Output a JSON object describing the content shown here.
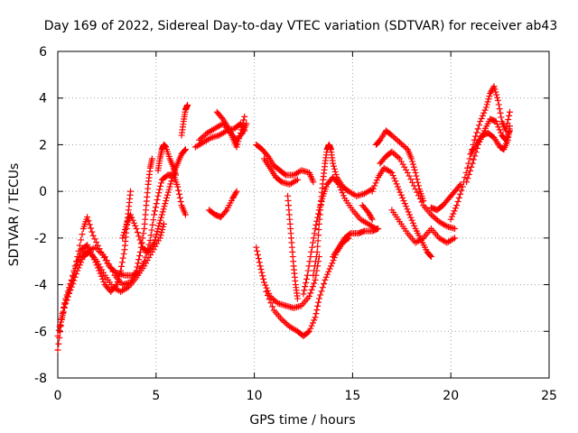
{
  "chart_data": {
    "type": "scatter",
    "title": "Day 169 of 2022, Sidereal Day-to-day VTEC variation (SDTVAR) for receiver ab43",
    "xlabel": "GPS time / hours",
    "ylabel": "SDTVAR / TECUs",
    "xlim": [
      0,
      25
    ],
    "ylim": [
      -8,
      6
    ],
    "xticks": [
      0,
      5,
      10,
      15,
      20,
      25
    ],
    "yticks": [
      -8,
      -6,
      -4,
      -2,
      0,
      2,
      4,
      6
    ],
    "grid": true,
    "marker": "plus",
    "color": "#ff0000",
    "traces": [
      {
        "name": "t1",
        "points": [
          [
            0.0,
            -6.8
          ],
          [
            0.2,
            -5.5
          ],
          [
            0.4,
            -4.6
          ],
          [
            0.7,
            -3.8
          ],
          [
            1.0,
            -2.8
          ],
          [
            1.3,
            -1.6
          ],
          [
            1.5,
            -1.1
          ],
          [
            1.8,
            -1.9
          ],
          [
            2.2,
            -2.6
          ],
          [
            2.6,
            -3.2
          ],
          [
            3.0,
            -3.5
          ],
          [
            3.4,
            -3.6
          ],
          [
            3.8,
            -3.6
          ],
          [
            4.1,
            -3.5
          ],
          [
            4.4,
            -3.0
          ],
          [
            4.7,
            -2.1
          ],
          [
            4.9,
            -1.0
          ],
          [
            5.1,
            -0.2
          ],
          [
            5.3,
            0.5
          ],
          [
            5.6,
            0.7
          ],
          [
            5.9,
            0.7
          ],
          [
            6.1,
            0.2
          ],
          [
            6.3,
            -0.6
          ],
          [
            6.5,
            -1.0
          ]
        ]
      },
      {
        "name": "t2",
        "points": [
          [
            0.0,
            -6.2
          ],
          [
            0.3,
            -5.0
          ],
          [
            0.6,
            -4.2
          ],
          [
            0.9,
            -3.3
          ],
          [
            1.2,
            -2.5
          ],
          [
            1.5,
            -2.3
          ],
          [
            1.8,
            -2.8
          ],
          [
            2.1,
            -3.4
          ],
          [
            2.4,
            -4.0
          ],
          [
            2.7,
            -4.3
          ],
          [
            3.0,
            -4.0
          ],
          [
            3.2,
            -3.4
          ],
          [
            3.4,
            -2.5
          ],
          [
            3.5,
            -1.6
          ],
          [
            3.6,
            -0.8
          ],
          [
            3.7,
            0.0
          ]
        ]
      },
      {
        "name": "t3",
        "points": [
          [
            0.1,
            -5.8
          ],
          [
            0.4,
            -4.8
          ],
          [
            0.7,
            -4.1
          ],
          [
            1.0,
            -3.4
          ],
          [
            1.3,
            -2.8
          ],
          [
            1.6,
            -2.6
          ],
          [
            2.0,
            -3.0
          ],
          [
            2.4,
            -3.6
          ],
          [
            2.8,
            -4.1
          ],
          [
            3.2,
            -4.3
          ],
          [
            3.6,
            -4.1
          ],
          [
            4.0,
            -3.7
          ],
          [
            4.4,
            -3.2
          ],
          [
            4.8,
            -2.6
          ],
          [
            5.2,
            -2.0
          ],
          [
            5.4,
            -1.4
          ]
        ]
      },
      {
        "name": "t4",
        "points": [
          [
            1.0,
            -3.0
          ],
          [
            1.4,
            -2.6
          ],
          [
            1.9,
            -2.4
          ],
          [
            2.4,
            -2.8
          ],
          [
            2.9,
            -3.6
          ],
          [
            3.3,
            -4.0
          ],
          [
            3.7,
            -3.9
          ],
          [
            4.0,
            -3.4
          ],
          [
            4.2,
            -2.6
          ],
          [
            4.4,
            -1.6
          ],
          [
            4.5,
            -0.6
          ],
          [
            4.6,
            0.3
          ],
          [
            4.7,
            1.0
          ],
          [
            4.8,
            1.4
          ]
        ]
      },
      {
        "name": "t5",
        "points": [
          [
            3.3,
            -2.0
          ],
          [
            3.5,
            -1.4
          ],
          [
            3.7,
            -1.0
          ],
          [
            4.0,
            -1.6
          ],
          [
            4.3,
            -2.4
          ],
          [
            4.6,
            -2.6
          ],
          [
            4.9,
            -2.2
          ],
          [
            5.1,
            -1.6
          ],
          [
            5.3,
            -1.0
          ],
          [
            5.5,
            -0.4
          ],
          [
            5.7,
            0.2
          ],
          [
            5.9,
            0.8
          ],
          [
            6.1,
            1.2
          ],
          [
            6.3,
            1.6
          ],
          [
            6.5,
            1.8
          ]
        ]
      },
      {
        "name": "t6",
        "points": [
          [
            5.1,
            0.9
          ],
          [
            5.2,
            1.4
          ],
          [
            5.3,
            1.8
          ],
          [
            5.4,
            2.0
          ],
          [
            5.5,
            1.9
          ],
          [
            5.7,
            1.4
          ],
          [
            5.9,
            1.0
          ],
          [
            6.0,
            0.7
          ]
        ]
      },
      {
        "name": "t7",
        "points": [
          [
            6.3,
            2.4
          ],
          [
            6.4,
            3.0
          ],
          [
            6.5,
            3.5
          ],
          [
            6.6,
            3.7
          ]
        ]
      },
      {
        "name": "t8",
        "points": [
          [
            7.0,
            1.9
          ],
          [
            7.4,
            2.1
          ],
          [
            7.8,
            2.3
          ],
          [
            8.2,
            2.4
          ],
          [
            8.6,
            2.6
          ],
          [
            9.0,
            2.7
          ],
          [
            9.3,
            2.9
          ],
          [
            9.5,
            2.6
          ]
        ]
      },
      {
        "name": "t9",
        "points": [
          [
            7.2,
            2.2
          ],
          [
            7.6,
            2.5
          ],
          [
            8.0,
            2.7
          ],
          [
            8.4,
            2.9
          ],
          [
            8.8,
            2.5
          ],
          [
            9.1,
            2.2
          ],
          [
            9.4,
            2.5
          ],
          [
            9.6,
            2.9
          ]
        ]
      },
      {
        "name": "t10",
        "points": [
          [
            8.1,
            3.4
          ],
          [
            8.4,
            3.1
          ],
          [
            8.7,
            2.7
          ],
          [
            8.9,
            2.3
          ],
          [
            9.1,
            1.9
          ],
          [
            9.3,
            2.5
          ],
          [
            9.5,
            3.2
          ]
        ]
      },
      {
        "name": "t11",
        "points": [
          [
            7.7,
            -0.8
          ],
          [
            8.0,
            -1.0
          ],
          [
            8.3,
            -1.1
          ],
          [
            8.6,
            -0.8
          ],
          [
            8.9,
            -0.3
          ],
          [
            9.1,
            0.0
          ]
        ]
      },
      {
        "name": "t12",
        "points": [
          [
            10.1,
            2.0
          ],
          [
            10.4,
            1.8
          ],
          [
            10.7,
            1.5
          ],
          [
            11.0,
            1.1
          ],
          [
            11.3,
            0.9
          ],
          [
            11.6,
            0.7
          ],
          [
            12.0,
            0.7
          ],
          [
            12.4,
            0.9
          ],
          [
            12.8,
            0.8
          ],
          [
            13.0,
            0.4
          ]
        ]
      },
      {
        "name": "t13",
        "points": [
          [
            10.5,
            1.4
          ],
          [
            10.8,
            1.0
          ],
          [
            11.1,
            0.6
          ],
          [
            11.4,
            0.4
          ],
          [
            11.8,
            0.3
          ],
          [
            12.2,
            0.5
          ]
        ]
      },
      {
        "name": "t14",
        "points": [
          [
            10.1,
            -2.4
          ],
          [
            10.3,
            -3.2
          ],
          [
            10.5,
            -3.9
          ],
          [
            10.8,
            -4.5
          ],
          [
            11.2,
            -4.8
          ],
          [
            11.6,
            -4.9
          ],
          [
            12.0,
            -5.0
          ],
          [
            12.4,
            -4.9
          ],
          [
            12.8,
            -4.5
          ],
          [
            13.1,
            -3.8
          ],
          [
            13.3,
            -2.8
          ]
        ]
      },
      {
        "name": "t15",
        "points": [
          [
            10.6,
            -4.3
          ],
          [
            11.0,
            -5.1
          ],
          [
            11.4,
            -5.5
          ],
          [
            11.8,
            -5.8
          ],
          [
            12.2,
            -6.0
          ],
          [
            12.5,
            -6.2
          ],
          [
            12.8,
            -6.0
          ],
          [
            13.1,
            -5.4
          ],
          [
            13.3,
            -4.6
          ],
          [
            13.6,
            -3.8
          ],
          [
            13.9,
            -3.2
          ],
          [
            14.2,
            -2.6
          ],
          [
            14.5,
            -2.2
          ],
          [
            14.8,
            -2.0
          ]
        ]
      },
      {
        "name": "t16",
        "points": [
          [
            11.7,
            -0.2
          ],
          [
            11.8,
            -1.2
          ],
          [
            11.9,
            -2.2
          ],
          [
            12.0,
            -3.2
          ],
          [
            12.1,
            -4.0
          ],
          [
            12.2,
            -4.6
          ]
        ]
      },
      {
        "name": "t17",
        "points": [
          [
            13.0,
            -3.6
          ],
          [
            13.2,
            -2.6
          ],
          [
            13.3,
            -1.4
          ],
          [
            13.4,
            -0.4
          ],
          [
            13.5,
            0.5
          ],
          [
            13.6,
            1.2
          ],
          [
            13.7,
            1.8
          ],
          [
            13.8,
            2.0
          ],
          [
            13.9,
            1.8
          ],
          [
            14.0,
            1.2
          ],
          [
            14.2,
            0.6
          ],
          [
            14.5,
            0.2
          ],
          [
            14.8,
            0.0
          ],
          [
            15.2,
            -0.2
          ],
          [
            15.6,
            -0.1
          ],
          [
            16.0,
            0.1
          ]
        ]
      },
      {
        "name": "t18",
        "points": [
          [
            12.5,
            -4.4
          ],
          [
            12.7,
            -3.6
          ],
          [
            12.9,
            -2.6
          ],
          [
            13.1,
            -1.6
          ],
          [
            13.3,
            -0.8
          ],
          [
            13.5,
            -0.2
          ],
          [
            13.7,
            0.3
          ],
          [
            14.0,
            0.6
          ],
          [
            14.3,
            0.3
          ],
          [
            14.6,
            -0.3
          ],
          [
            15.0,
            -0.8
          ],
          [
            15.4,
            -1.2
          ],
          [
            15.8,
            -1.4
          ],
          [
            16.2,
            -1.6
          ]
        ]
      },
      {
        "name": "t19",
        "points": [
          [
            14.0,
            -2.8
          ],
          [
            14.3,
            -2.4
          ],
          [
            14.6,
            -2.0
          ],
          [
            14.9,
            -1.8
          ],
          [
            15.3,
            -1.8
          ],
          [
            15.6,
            -1.7
          ],
          [
            16.0,
            -1.7
          ],
          [
            16.3,
            -1.6
          ]
        ]
      },
      {
        "name": "t20",
        "points": [
          [
            15.5,
            -0.6
          ],
          [
            15.8,
            -0.9
          ],
          [
            16.0,
            -1.2
          ]
        ]
      },
      {
        "name": "t21",
        "points": [
          [
            16.2,
            2.0
          ],
          [
            16.4,
            2.2
          ],
          [
            16.7,
            2.6
          ],
          [
            17.0,
            2.4
          ],
          [
            17.4,
            2.1
          ],
          [
            17.8,
            1.8
          ],
          [
            18.0,
            1.4
          ],
          [
            18.2,
            0.8
          ],
          [
            18.4,
            0.1
          ],
          [
            18.6,
            -0.4
          ]
        ]
      },
      {
        "name": "t22",
        "points": [
          [
            16.4,
            1.2
          ],
          [
            16.7,
            1.5
          ],
          [
            17.0,
            1.7
          ],
          [
            17.4,
            1.4
          ],
          [
            17.8,
            0.8
          ],
          [
            18.2,
            0.1
          ],
          [
            18.6,
            -0.6
          ],
          [
            19.0,
            -1.0
          ],
          [
            19.4,
            -1.3
          ],
          [
            19.8,
            -1.5
          ],
          [
            20.2,
            -1.6
          ]
        ]
      },
      {
        "name": "t23",
        "points": [
          [
            16.0,
            0.0
          ],
          [
            16.3,
            0.6
          ],
          [
            16.6,
            1.0
          ],
          [
            17.0,
            0.8
          ],
          [
            17.3,
            0.2
          ],
          [
            17.6,
            -0.4
          ],
          [
            17.9,
            -1.0
          ],
          [
            18.2,
            -1.6
          ],
          [
            18.5,
            -2.1
          ],
          [
            18.8,
            -2.6
          ],
          [
            19.0,
            -2.8
          ]
        ]
      },
      {
        "name": "t24",
        "points": [
          [
            17.0,
            -0.8
          ],
          [
            17.4,
            -1.3
          ],
          [
            17.8,
            -1.8
          ],
          [
            18.2,
            -2.2
          ],
          [
            18.6,
            -2.0
          ],
          [
            19.0,
            -1.6
          ],
          [
            19.4,
            -2.0
          ],
          [
            19.8,
            -2.2
          ],
          [
            20.2,
            -2.0
          ]
        ]
      },
      {
        "name": "t25",
        "points": [
          [
            19.0,
            -0.7
          ],
          [
            19.3,
            -0.8
          ],
          [
            19.6,
            -0.6
          ],
          [
            19.9,
            -0.3
          ],
          [
            20.2,
            0.0
          ],
          [
            20.5,
            0.3
          ]
        ]
      },
      {
        "name": "t26",
        "points": [
          [
            20.0,
            -1.2
          ],
          [
            20.3,
            -0.6
          ],
          [
            20.6,
            0.2
          ],
          [
            20.9,
            1.2
          ],
          [
            21.2,
            2.2
          ],
          [
            21.5,
            3.0
          ],
          [
            21.8,
            3.6
          ],
          [
            22.0,
            4.2
          ],
          [
            22.2,
            4.5
          ],
          [
            22.4,
            3.9
          ],
          [
            22.6,
            3.0
          ],
          [
            22.8,
            2.6
          ],
          [
            23.0,
            3.4
          ]
        ]
      },
      {
        "name": "t27",
        "points": [
          [
            20.8,
            0.4
          ],
          [
            21.1,
            1.2
          ],
          [
            21.4,
            2.0
          ],
          [
            21.7,
            2.6
          ],
          [
            22.0,
            3.1
          ],
          [
            22.3,
            3.0
          ],
          [
            22.6,
            2.4
          ],
          [
            22.8,
            2.2
          ],
          [
            23.0,
            2.6
          ]
        ]
      },
      {
        "name": "t28",
        "points": [
          [
            21.0,
            1.6
          ],
          [
            21.3,
            2.0
          ],
          [
            21.6,
            2.4
          ],
          [
            21.9,
            2.5
          ],
          [
            22.2,
            2.3
          ],
          [
            22.5,
            1.9
          ],
          [
            22.7,
            1.8
          ],
          [
            22.9,
            2.2
          ],
          [
            23.0,
            2.8
          ]
        ]
      }
    ]
  }
}
